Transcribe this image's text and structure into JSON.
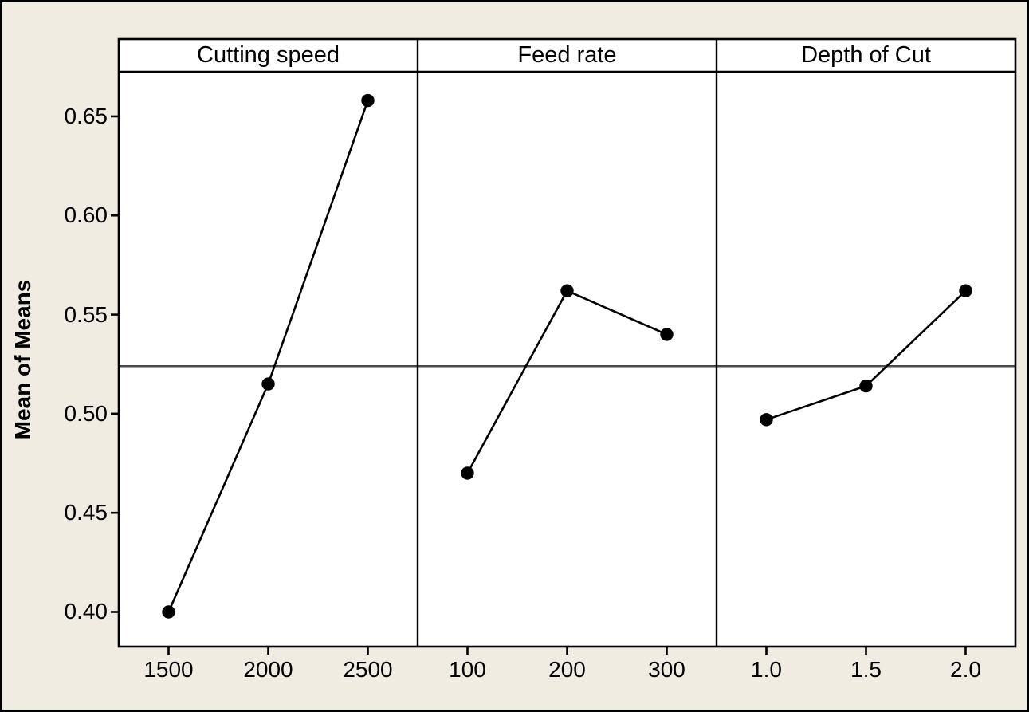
{
  "colors": {
    "background": "#f0ece2",
    "plot_background": "#ffffff",
    "frame": "#000000",
    "series_line": "#000000",
    "marker": "#000000",
    "reference_line": "#4a4a4a",
    "text": "#000000"
  },
  "chart_data": {
    "type": "line",
    "subtype": "main-effects-plot",
    "ylabel": "Mean of Means",
    "ylim": [
      0.3825,
      0.6725
    ],
    "grid": false,
    "legend": false,
    "yticks": [
      {
        "label": "0.65",
        "value": 0.65
      },
      {
        "label": "0.60",
        "value": 0.6
      },
      {
        "label": "0.55",
        "value": 0.55
      },
      {
        "label": "0.50",
        "value": 0.5
      },
      {
        "label": "0.45",
        "value": 0.45
      },
      {
        "label": "0.40",
        "value": 0.4
      }
    ],
    "reference_line_value": 0.524,
    "panels": [
      {
        "label": "Cutting speed",
        "categories": [
          "1500",
          "2000",
          "2500"
        ],
        "values": [
          0.4,
          0.515,
          0.658
        ]
      },
      {
        "label": "Feed rate",
        "categories": [
          "100",
          "200",
          "300"
        ],
        "values": [
          0.47,
          0.562,
          0.54
        ]
      },
      {
        "label": "Depth of Cut",
        "categories": [
          "1.0",
          "1.5",
          "2.0"
        ],
        "values": [
          0.497,
          0.514,
          0.562
        ]
      }
    ]
  }
}
